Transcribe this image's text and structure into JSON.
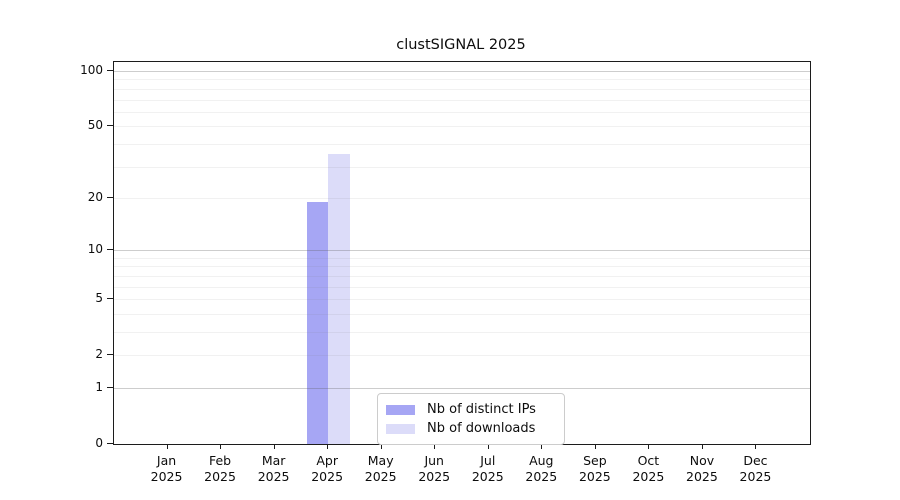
{
  "chart_data": {
    "type": "bar",
    "title": "clustSIGNAL 2025",
    "categories": [
      "Jan 2025",
      "Feb 2025",
      "Mar 2025",
      "Apr 2025",
      "May 2025",
      "Jun 2025",
      "Jul 2025",
      "Aug 2025",
      "Sep 2025",
      "Oct 2025",
      "Nov 2025",
      "Dec 2025"
    ],
    "series": [
      {
        "name": "Nb of distinct IPs",
        "color": "#a6a6f4",
        "values": [
          0,
          0,
          0,
          19,
          0,
          0,
          0,
          0,
          0,
          0,
          0,
          0
        ]
      },
      {
        "name": "Nb of downloads",
        "color": "#dcdcf9",
        "values": [
          0,
          0,
          0,
          35,
          0,
          0,
          0,
          0,
          0,
          0,
          0,
          0
        ]
      }
    ],
    "y_ticks": [
      0,
      1,
      2,
      5,
      10,
      20,
      50,
      100
    ],
    "gridlines": {
      "major": [
        1,
        10,
        100
      ],
      "minor": [
        2,
        3,
        4,
        5,
        6,
        7,
        8,
        9,
        20,
        30,
        40,
        50,
        60,
        70,
        80,
        90
      ]
    },
    "scale": "log1p",
    "ylim": [
      0,
      112
    ],
    "grid": true,
    "legend_position": "lower center",
    "colors": {
      "spine": "#1c1c1c",
      "major_grid": "#cccccc",
      "minor_grid": "#efefef",
      "background": "#ffffff"
    }
  }
}
